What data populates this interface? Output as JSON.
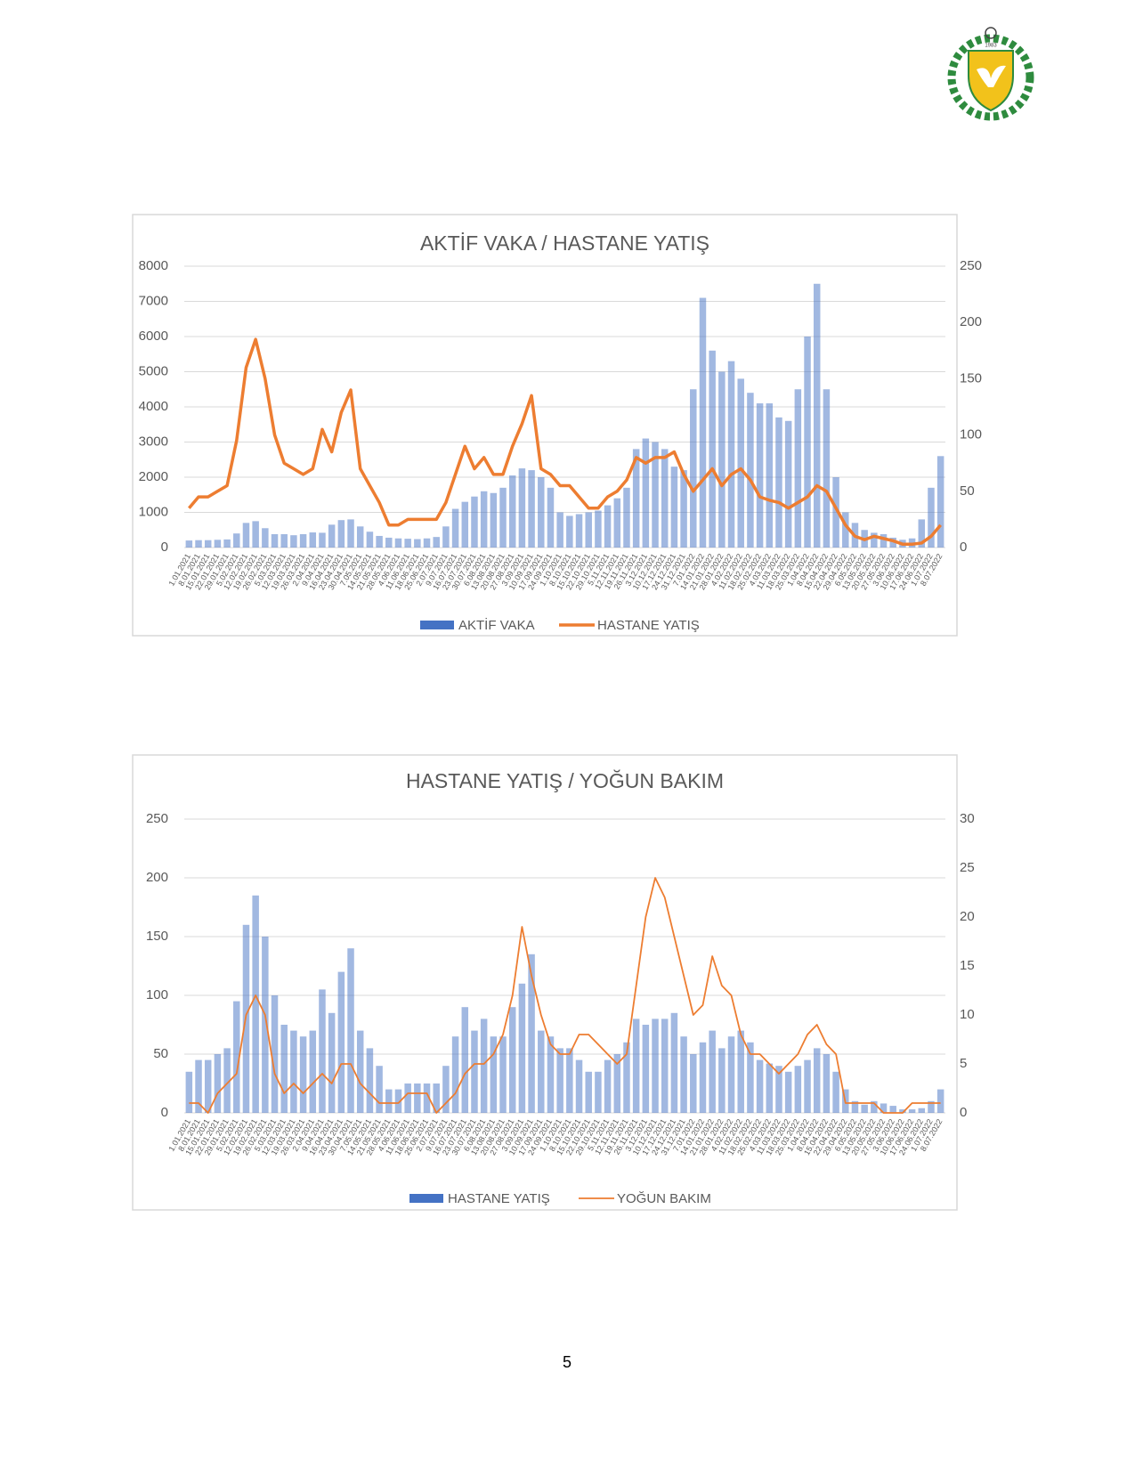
{
  "logo_text": "1983",
  "page_number": "5",
  "chart_data": [
    {
      "type": "combo",
      "title": "AKTİF VAKA / HASTANE YATIŞ",
      "categories": [
        "1.01.2021",
        "8.01.2021",
        "15.01.2021",
        "22.01.2021",
        "29.01.2021",
        "5.02.2021",
        "12.02.2021",
        "19.02.2021",
        "26.02.2021",
        "5.03.2021",
        "12.03.2021",
        "19.03.2021",
        "26.03.2021",
        "2.04.2021",
        "9.04.2021",
        "16.04.2021",
        "23.04.2021",
        "30.04.2021",
        "7.05.2021",
        "14.05.2021",
        "21.05.2021",
        "28.05.2021",
        "4.06.2021",
        "11.06.2021",
        "18.06.2021",
        "25.06.2021",
        "2.07.2021",
        "9.07.2021",
        "16.07.2021",
        "23.07.2021",
        "30.07.2021",
        "6.08.2021",
        "13.08.2021",
        "20.08.2021",
        "27.08.2021",
        "3.09.2021",
        "10.09.2021",
        "17.09.2021",
        "24.09.2021",
        "1.10.2021",
        "8.10.2021",
        "15.10.2021",
        "22.10.2021",
        "29.10.2021",
        "5.11.2021",
        "12.11.2021",
        "19.11.2021",
        "26.11.2021",
        "3.12.2021",
        "10.12.2021",
        "17.12.2021",
        "24.12.2021",
        "31.12.2021",
        "7.01.2022",
        "14.01.2022",
        "21.01.2022",
        "28.01.2022",
        "4.02.2022",
        "11.02.2022",
        "18.02.2022",
        "25.02.2022",
        "4.03.2022",
        "11.03.2022",
        "18.03.2022",
        "25.03.2022",
        "1.04.2022",
        "8.04.2022",
        "15.04.2022",
        "22.04.2022",
        "29.04.2022",
        "6.05.2022",
        "13.05.2022",
        "20.05.2022",
        "27.05.2022",
        "3.06.2022",
        "10.06.2022",
        "17.06.2022",
        "24.06.2022",
        "1.07.2022",
        "8.07.2022"
      ],
      "series": [
        {
          "name": "AKTİF VAKA",
          "type": "bar",
          "color": "#4472c4",
          "axis": "y",
          "values": [
            200,
            210,
            210,
            220,
            230,
            400,
            700,
            750,
            550,
            380,
            380,
            350,
            380,
            430,
            420,
            650,
            780,
            800,
            600,
            450,
            330,
            280,
            260,
            250,
            240,
            260,
            300,
            600,
            1100,
            1300,
            1450,
            1600,
            1550,
            1700,
            2050,
            2250,
            2200,
            2000,
            1700,
            1000,
            900,
            950,
            1000,
            1050,
            1200,
            1400,
            1700,
            2800,
            3100,
            3000,
            2800,
            2300,
            2200,
            4500,
            7100,
            5600,
            5000,
            5300,
            4800,
            4400,
            4100,
            4100,
            3700,
            3600,
            4500,
            6000,
            7500,
            4500,
            2000,
            1000,
            700,
            500,
            420,
            380,
            280,
            220,
            260,
            800,
            1700,
            2600
          ]
        },
        {
          "name": "HASTANE YATIŞ",
          "type": "line",
          "color": "#ed7d31",
          "axis": "y2",
          "values": [
            35,
            45,
            45,
            50,
            55,
            95,
            160,
            185,
            150,
            100,
            75,
            70,
            65,
            70,
            105,
            85,
            120,
            140,
            70,
            55,
            40,
            20,
            20,
            25,
            25,
            25,
            25,
            40,
            65,
            90,
            70,
            80,
            65,
            65,
            90,
            110,
            135,
            70,
            65,
            55,
            55,
            45,
            35,
            35,
            45,
            50,
            60,
            80,
            75,
            80,
            80,
            85,
            65,
            50,
            60,
            70,
            55,
            65,
            70,
            60,
            45,
            42,
            40,
            35,
            40,
            45,
            55,
            50,
            35,
            20,
            10,
            7,
            10,
            8,
            6,
            3,
            3,
            4,
            10,
            20
          ]
        }
      ],
      "ylim": [
        0,
        8000
      ],
      "yticks": [
        0,
        1000,
        2000,
        3000,
        4000,
        5000,
        6000,
        7000,
        8000
      ],
      "y2lim": [
        0,
        250
      ],
      "y2ticks": [
        0,
        50,
        100,
        150,
        200,
        250
      ],
      "grid": true,
      "legend": "bottom"
    },
    {
      "type": "combo",
      "title": "HASTANE YATIŞ / YOĞUN BAKIM",
      "categories": [
        "1.01.2021",
        "8.01.2021",
        "15.01.2021",
        "22.01.2021",
        "29.01.2021",
        "5.02.2021",
        "12.02.2021",
        "19.02.2021",
        "26.02.2021",
        "5.03.2021",
        "12.03.2021",
        "19.03.2021",
        "26.03.2021",
        "2.04.2021",
        "9.04.2021",
        "16.04.2021",
        "23.04.2021",
        "30.04.2021",
        "7.05.2021",
        "14.05.2021",
        "21.05.2021",
        "28.05.2021",
        "4.06.2021",
        "11.06.2021",
        "18.06.2021",
        "25.06.2021",
        "2.07.2021",
        "9.07.2021",
        "16.07.2021",
        "23.07.2021",
        "30.07.2021",
        "6.08.2021",
        "13.08.2021",
        "20.08.2021",
        "27.08.2021",
        "3.09.2021",
        "10.09.2021",
        "17.09.2021",
        "24.09.2021",
        "1.10.2021",
        "8.10.2021",
        "15.10.2021",
        "22.10.2021",
        "29.10.2021",
        "5.11.2021",
        "12.11.2021",
        "19.11.2021",
        "26.11.2021",
        "3.12.2021",
        "10.12.2021",
        "17.12.2021",
        "24.12.2021",
        "31.12.2021",
        "7.01.2022",
        "14.01.2022",
        "21.01.2022",
        "28.01.2022",
        "4.02.2022",
        "11.02.2022",
        "18.02.2022",
        "25.02.2022",
        "4.03.2022",
        "11.03.2022",
        "18.03.2022",
        "25.03.2022",
        "1.04.2022",
        "8.04.2022",
        "15.04.2022",
        "22.04.2022",
        "29.04.2022",
        "6.05.2022",
        "13.05.2022",
        "20.05.2022",
        "27.05.2022",
        "3.06.2022",
        "10.06.2022",
        "17.06.2022",
        "24.06.2022",
        "1.07.2022",
        "8.07.2022"
      ],
      "series": [
        {
          "name": "HASTANE YATIŞ",
          "type": "bar",
          "color": "#4472c4",
          "axis": "y",
          "values": [
            35,
            45,
            45,
            50,
            55,
            95,
            160,
            185,
            150,
            100,
            75,
            70,
            65,
            70,
            105,
            85,
            120,
            140,
            70,
            55,
            40,
            20,
            20,
            25,
            25,
            25,
            25,
            40,
            65,
            90,
            70,
            80,
            65,
            65,
            90,
            110,
            135,
            70,
            65,
            55,
            55,
            45,
            35,
            35,
            45,
            50,
            60,
            80,
            75,
            80,
            80,
            85,
            65,
            50,
            60,
            70,
            55,
            65,
            70,
            60,
            45,
            42,
            40,
            35,
            40,
            45,
            55,
            50,
            35,
            20,
            10,
            7,
            10,
            8,
            6,
            3,
            3,
            4,
            10,
            20
          ]
        },
        {
          "name": "YOĞUN BAKIM",
          "type": "line",
          "color": "#ed7d31",
          "axis": "y2",
          "values": [
            1,
            1,
            0,
            2,
            3,
            4,
            10,
            12,
            10,
            4,
            2,
            3,
            2,
            3,
            4,
            3,
            5,
            5,
            3,
            2,
            1,
            1,
            1,
            2,
            2,
            2,
            0,
            1,
            2,
            4,
            5,
            5,
            6,
            8,
            12,
            19,
            14,
            10,
            7,
            6,
            6,
            8,
            8,
            7,
            6,
            5,
            6,
            13,
            20,
            24,
            22,
            18,
            14,
            10,
            11,
            16,
            13,
            12,
            8,
            6,
            6,
            5,
            4,
            5,
            6,
            8,
            9,
            7,
            6,
            1,
            1,
            1,
            1,
            0,
            0,
            0,
            1,
            1,
            1,
            1
          ]
        }
      ],
      "ylim": [
        0,
        250
      ],
      "yticks": [
        0,
        50,
        100,
        150,
        200,
        250
      ],
      "y2lim": [
        0,
        30
      ],
      "y2ticks": [
        0,
        5,
        10,
        15,
        20,
        25,
        30
      ],
      "grid": true,
      "legend": "bottom"
    }
  ]
}
